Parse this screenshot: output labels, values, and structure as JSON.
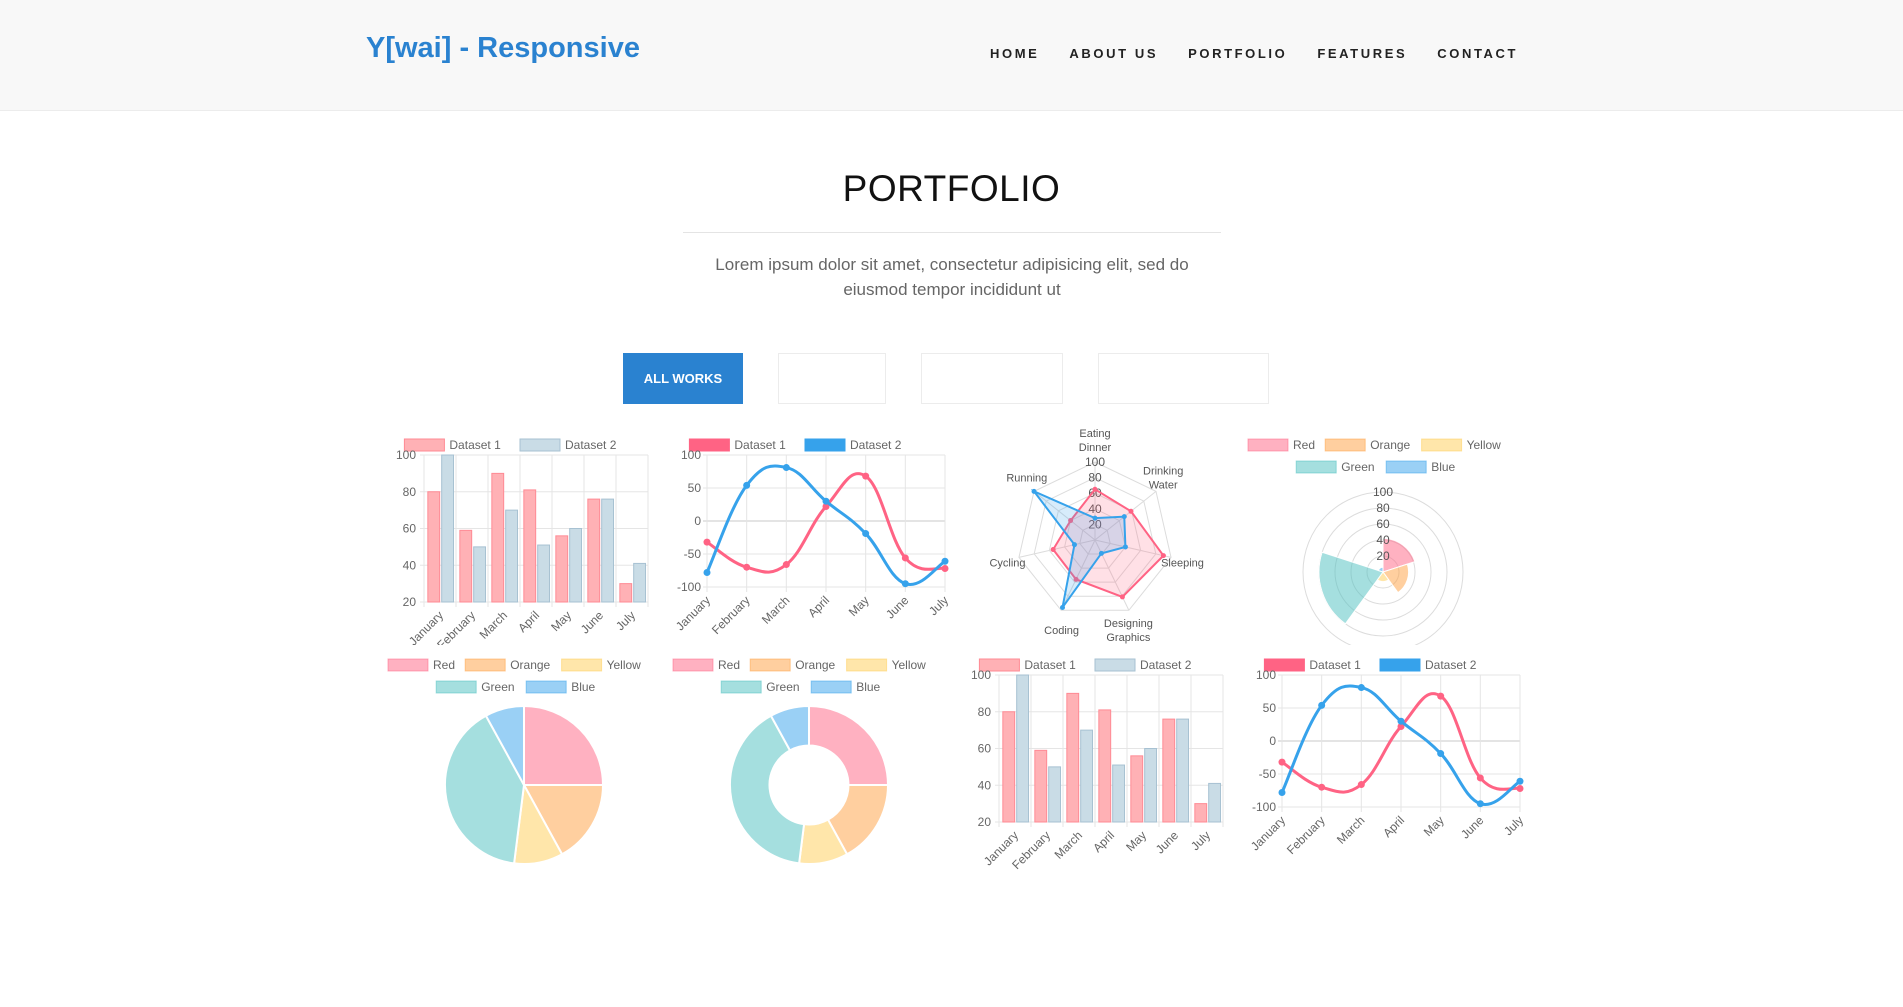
{
  "header": {
    "brand": "Y[wai] - Responsive",
    "nav": [
      "HOME",
      "ABOUT US",
      "PORTFOLIO",
      "FEATURES",
      "CONTACT"
    ]
  },
  "section": {
    "title": "PORTFOLIO",
    "lead": "Lorem ipsum dolor sit amet, consectetur adipisicing elit, sed do eiusmod tempor incididunt ut"
  },
  "filters": {
    "active_label": "ALL WORKS",
    "others": [
      "",
      "",
      ""
    ]
  },
  "colors": {
    "accent": "#2a82d0",
    "red": "#ff6384",
    "orange": "#ff9f40",
    "yellow": "#ffcd56",
    "green": "#4bc0c0",
    "blue": "#36a2eb",
    "dataset1_bar": "#ffb1b5",
    "dataset2_bar": "#c9dce6"
  },
  "chart_data": [
    {
      "type": "bar",
      "categories": [
        "January",
        "February",
        "March",
        "April",
        "May",
        "June",
        "July"
      ],
      "series": [
        {
          "name": "Dataset 1",
          "values": [
            80,
            59,
            90,
            81,
            56,
            76,
            30
          ]
        },
        {
          "name": "Dataset 2",
          "values": [
            100,
            50,
            70,
            51,
            60,
            76,
            41
          ]
        }
      ],
      "yticks": [
        "100",
        "80",
        "60",
        "40",
        "20"
      ],
      "ylim": [
        20,
        100
      ]
    },
    {
      "type": "line",
      "categories": [
        "January",
        "February",
        "March",
        "April",
        "May",
        "June",
        "July"
      ],
      "series": [
        {
          "name": "Dataset 1",
          "values": [
            -32,
            -70,
            -66,
            22,
            68,
            -56,
            -72
          ]
        },
        {
          "name": "Dataset 2",
          "values": [
            -78,
            54,
            81,
            30,
            -19,
            -95,
            -61
          ]
        }
      ],
      "yticks": [
        "100",
        "50",
        "0",
        "-50",
        "-100"
      ],
      "ylim": [
        -100,
        100
      ]
    },
    {
      "type": "radar",
      "labels": [
        [
          "Eating",
          "Dinner"
        ],
        [
          "Drinking",
          "Water"
        ],
        [
          "Sleeping"
        ],
        [
          "Designing",
          "Graphics"
        ],
        [
          "Coding"
        ],
        [
          "Cycling"
        ],
        [
          "Running"
        ]
      ],
      "series": [
        {
          "name": "Dataset 1",
          "values": [
            65,
            59,
            90,
            81,
            56,
            55,
            40
          ]
        },
        {
          "name": "Dataset 2",
          "values": [
            28,
            48,
            40,
            19,
            96,
            27,
            100
          ]
        }
      ],
      "ticks": [
        "100",
        "80",
        "60",
        "40",
        "20"
      ]
    },
    {
      "type": "polarArea",
      "labels": [
        "Red",
        "Orange",
        "Yellow",
        "Green",
        "Blue"
      ],
      "values": [
        42,
        32,
        12,
        80,
        6
      ],
      "ticks": [
        "100",
        "80",
        "60",
        "40",
        "20"
      ]
    },
    {
      "type": "pie",
      "labels": [
        "Red",
        "Orange",
        "Yellow",
        "Green",
        "Blue"
      ],
      "values": [
        25,
        17,
        10,
        40,
        8
      ]
    },
    {
      "type": "doughnut",
      "labels": [
        "Red",
        "Orange",
        "Yellow",
        "Green",
        "Blue"
      ],
      "values": [
        25,
        17,
        10,
        40,
        8
      ]
    },
    {
      "type": "bar",
      "categories": [
        "January",
        "February",
        "March",
        "April",
        "May",
        "June",
        "July"
      ],
      "series": [
        {
          "name": "Dataset 1",
          "values": [
            80,
            59,
            90,
            81,
            56,
            76,
            30
          ]
        },
        {
          "name": "Dataset 2",
          "values": [
            100,
            50,
            70,
            51,
            60,
            76,
            41
          ]
        }
      ],
      "yticks": [
        "100",
        "80",
        "60",
        "40",
        "20"
      ],
      "ylim": [
        20,
        100
      ]
    },
    {
      "type": "line",
      "categories": [
        "January",
        "February",
        "March",
        "April",
        "May",
        "June",
        "July"
      ],
      "series": [
        {
          "name": "Dataset 1",
          "values": [
            -32,
            -70,
            -66,
            22,
            68,
            -56,
            -72
          ]
        },
        {
          "name": "Dataset 2",
          "values": [
            -78,
            54,
            81,
            30,
            -19,
            -95,
            -61
          ]
        }
      ],
      "yticks": [
        "100",
        "50",
        "0",
        "-50",
        "-100"
      ],
      "ylim": [
        -100,
        100
      ]
    }
  ]
}
